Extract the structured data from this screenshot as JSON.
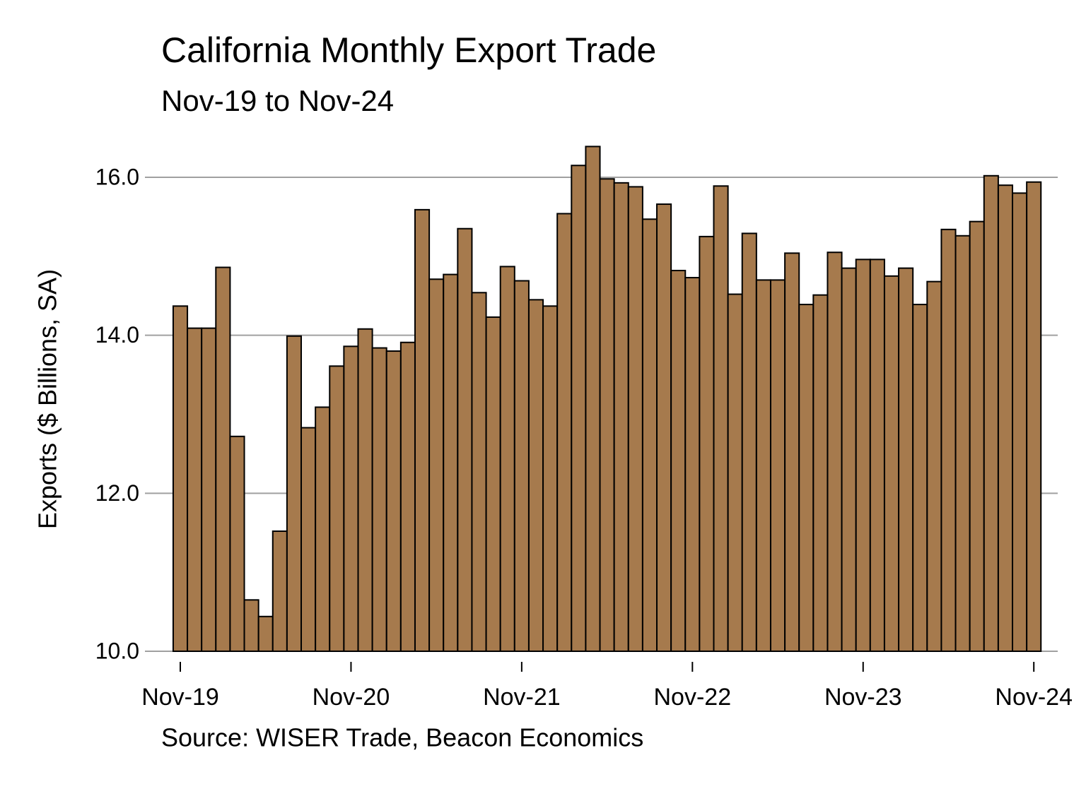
{
  "chart_data": {
    "type": "bar",
    "title": "California Monthly Export Trade",
    "subtitle": "Nov-19 to Nov-24",
    "y_label": "Exports ($ Billions, SA)",
    "source": "Source: WISER Trade, Beacon Economics",
    "categories": [
      "Nov-19",
      null,
      null,
      null,
      null,
      null,
      null,
      null,
      null,
      null,
      null,
      null,
      "Nov-20",
      null,
      null,
      null,
      null,
      null,
      null,
      null,
      null,
      null,
      null,
      null,
      "Nov-21",
      null,
      null,
      null,
      null,
      null,
      null,
      null,
      null,
      null,
      null,
      null,
      "Nov-22",
      null,
      null,
      null,
      null,
      null,
      null,
      null,
      null,
      null,
      null,
      null,
      "Nov-23",
      null,
      null,
      null,
      null,
      null,
      null,
      null,
      null,
      null,
      null,
      null,
      "Nov-24"
    ],
    "values": [
      14.37,
      14.09,
      14.09,
      14.86,
      12.72,
      10.65,
      10.44,
      11.52,
      13.99,
      12.83,
      13.09,
      13.61,
      13.86,
      14.08,
      13.84,
      13.8,
      13.91,
      15.59,
      14.71,
      14.77,
      15.35,
      14.54,
      14.23,
      14.87,
      14.69,
      14.45,
      14.37,
      15.54,
      16.15,
      16.39,
      15.98,
      15.93,
      15.88,
      15.47,
      15.66,
      14.82,
      14.73,
      15.25,
      15.89,
      14.52,
      15.29,
      14.7,
      14.7,
      15.04,
      14.39,
      14.51,
      15.05,
      14.85,
      14.96,
      14.96,
      14.75,
      14.85,
      14.39,
      14.68,
      15.34,
      15.26,
      15.44,
      16.02,
      15.9,
      15.8,
      15.94
    ],
    "color": "#a67a4d",
    "ylim": [
      10,
      16.5
    ],
    "yticks": [
      {
        "value": 10,
        "label": "10.0"
      },
      {
        "value": 12,
        "label": "12.0"
      },
      {
        "value": 14,
        "label": "14.0"
      },
      {
        "value": 16,
        "label": "16.0"
      }
    ],
    "grid": true
  }
}
